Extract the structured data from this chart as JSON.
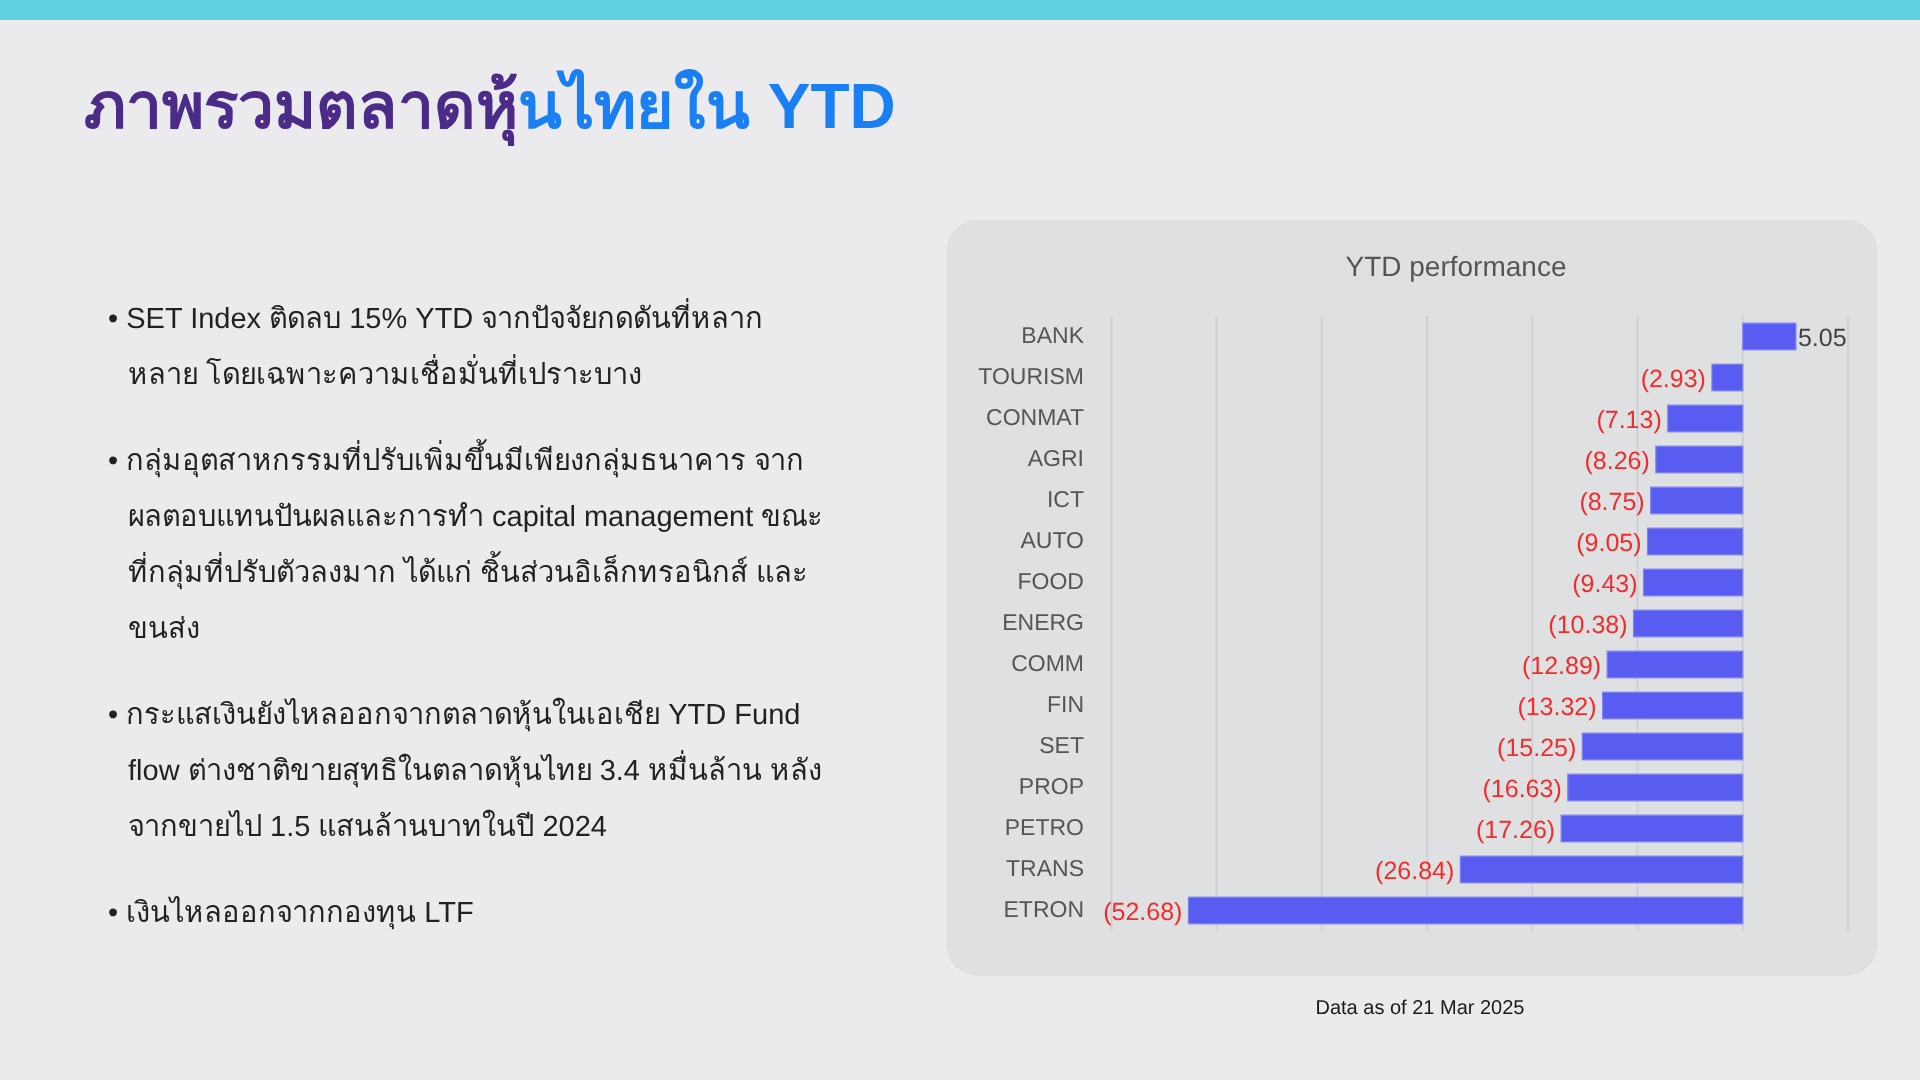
{
  "chart_data": {
    "type": "bar",
    "orientation": "horizontal",
    "title": "ภาพรวมตลาดหุ้นไทยใน YTD",
    "subtitle": "YTD performance",
    "categories": [
      "BANK",
      "TOURISM",
      "CONMAT",
      "AGRI",
      "ICT",
      "AUTO",
      "FOOD",
      "ENERG",
      "COMM",
      "FIN",
      "SET",
      "PROP",
      "PETRO",
      "TRANS",
      "ETRON"
    ],
    "values": [
      5.05,
      -2.93,
      -7.13,
      -8.26,
      -8.75,
      -9.05,
      -9.43,
      -10.38,
      -12.89,
      -13.32,
      -15.25,
      -16.63,
      -17.26,
      -26.84,
      -52.68
    ],
    "value_labels": [
      "5.05",
      "(2.93)",
      "(7.13)",
      "(8.26)",
      "(8.75)",
      "(9.05)",
      "(9.43)",
      "(10.38)",
      "(12.89)",
      "(13.32)",
      "(15.25)",
      "(16.63)",
      "(17.26)",
      "(26.84)",
      "(52.68)"
    ],
    "color": "#585cf0",
    "xlim": [
      -60,
      10
    ],
    "xticks": [
      {
        "value": -60,
        "label": null
      },
      {
        "value": -50,
        "label": null
      },
      {
        "value": -40,
        "label": null
      },
      {
        "value": -30,
        "label": null
      },
      {
        "value": -20,
        "label": null
      },
      {
        "value": -10,
        "label": null
      },
      {
        "value": 0,
        "label": null
      },
      {
        "value": 10,
        "label": null
      }
    ],
    "grid": "x",
    "tick_labels": "y",
    "annotations": [
      "• SET Index ติดลบ 15% YTD จากปัจจัยกดดันที่หลากหลาย โดยเฉพาะความเชื่อมั่นที่เปราะบาง",
      "• กลุ่มอุตสาหกรรมที่ปรับเพิ่มขึ้นมีเพียงกลุ่มธนาคาร จากผลตอบแทนปันผลและการทำ capital management ขณะที่กลุ่มที่ปรับตัวลงมาก ได้แก่ ชิ้นส่วนอิเล็กทรอนิกส์ และ ขนส่ง",
      "• กระแสเงินยังไหลออกจากตลาดหุ้นในเอเชีย YTD Fund flow ต่างชาติขายสุทธิในตลาดหุ้นไทย 3.4 หมื่นล้าน หลังจากขายไป 1.5 แสนล้านบาทในปี 2024",
      "• เงินไหลออกจากกองทุน LTF",
      "Data as of 21 Mar 2025"
    ]
  }
}
